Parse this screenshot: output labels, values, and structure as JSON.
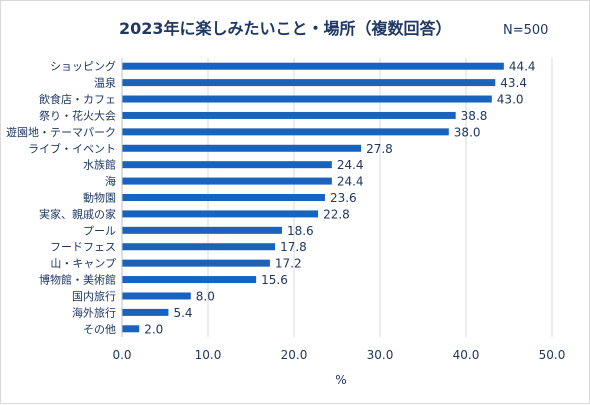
{
  "title": "2023年に楽しみたいこと・場所（複数回答）",
  "sample_size": "N=500",
  "colors": {
    "bar": "#1763bd",
    "text": "#1f3864",
    "grid": "#d9d9d9"
  },
  "chart_data": {
    "type": "bar",
    "orientation": "horizontal",
    "title": "2023年に楽しみたいこと・場所（複数回答）",
    "xlabel": "%",
    "ylabel": "",
    "xlim": [
      0,
      50
    ],
    "ticks": [
      "0.0",
      "10.0",
      "20.0",
      "30.0",
      "40.0",
      "50.0"
    ],
    "grid": true,
    "categories": [
      "ショッピング",
      "温泉",
      "飲食店・カフェ",
      "祭り・花火大会",
      "遊園地・テーマパーク",
      "ライブ・イベント",
      "水族館",
      "海",
      "動物園",
      "実家、親戚の家",
      "プール",
      "フードフェス",
      "山・キャンプ",
      "博物館・美術館",
      "国内旅行",
      "海外旅行",
      "その他"
    ],
    "values": [
      44.4,
      43.4,
      43.0,
      38.8,
      38.0,
      27.8,
      24.4,
      24.4,
      23.6,
      22.8,
      18.6,
      17.8,
      17.2,
      15.6,
      8.0,
      5.4,
      2.0
    ],
    "value_labels": [
      "44.4",
      "43.4",
      "43.0",
      "38.8",
      "38.0",
      "27.8",
      "24.4",
      "24.4",
      "23.6",
      "22.8",
      "18.6",
      "17.8",
      "17.2",
      "15.6",
      "8.0",
      "5.4",
      "2.0"
    ]
  }
}
